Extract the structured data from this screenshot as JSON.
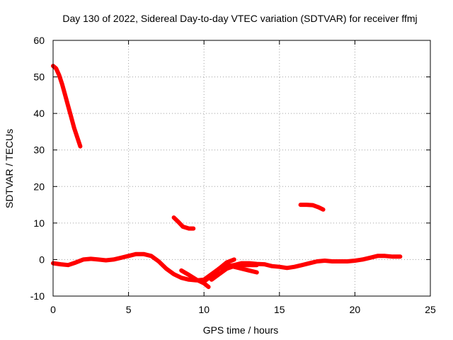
{
  "chart_data": {
    "type": "line",
    "title": "Day 130 of 2022, Sidereal Day-to-day VTEC variation (SDTVAR) for receiver ffmj",
    "xlabel": "GPS time / hours",
    "ylabel": "SDTVAR / TECUs",
    "xlim": [
      0,
      25
    ],
    "ylim": [
      -10,
      60
    ],
    "xticks": [
      0,
      5,
      10,
      15,
      20,
      25
    ],
    "yticks": [
      -10,
      0,
      10,
      20,
      30,
      40,
      50,
      60
    ],
    "xtick_labels": [
      "0",
      "5",
      "10",
      "15",
      "20",
      "25"
    ],
    "ytick_labels": [
      "-10",
      "0",
      "10",
      "20",
      "30",
      "40",
      "50",
      "60"
    ],
    "grid": true,
    "series_color": "#ff0000",
    "series": [
      {
        "name": "steep-descent",
        "x": [
          0.0,
          0.2,
          0.4,
          0.6,
          0.8,
          1.0,
          1.2,
          1.4,
          1.6,
          1.8
        ],
        "y": [
          53.0,
          52.3,
          50.5,
          48.0,
          45.0,
          42.0,
          39.0,
          36.0,
          33.5,
          31.0
        ]
      },
      {
        "name": "main-trace",
        "x": [
          0.0,
          0.5,
          1.0,
          1.5,
          2.0,
          2.5,
          3.0,
          3.5,
          4.0,
          4.5,
          5.0,
          5.5,
          6.0,
          6.5,
          7.0,
          7.5,
          8.0,
          8.5,
          9.0,
          9.5,
          10.0,
          10.5,
          11.0,
          11.5,
          12.0,
          12.5,
          13.0,
          13.5,
          14.0,
          14.5,
          15.0,
          15.5,
          16.0,
          16.5,
          17.0,
          17.5,
          18.0,
          18.5,
          19.0,
          19.5,
          20.0,
          20.5,
          21.0,
          21.5,
          22.0,
          22.5,
          23.0
        ],
        "y": [
          -1.0,
          -1.3,
          -1.5,
          -0.8,
          0.0,
          0.2,
          0.0,
          -0.2,
          0.0,
          0.5,
          1.0,
          1.5,
          1.5,
          1.0,
          -0.5,
          -2.5,
          -4.0,
          -5.0,
          -5.5,
          -5.7,
          -5.5,
          -4.0,
          -2.5,
          -1.8,
          -1.5,
          -1.0,
          -1.0,
          -1.2,
          -1.3,
          -1.8,
          -2.0,
          -2.3,
          -2.0,
          -1.5,
          -1.0,
          -0.5,
          -0.3,
          -0.5,
          -0.5,
          -0.5,
          -0.3,
          0.0,
          0.5,
          1.0,
          1.0,
          0.8,
          0.8
        ]
      },
      {
        "name": "branch-a",
        "x": [
          8.5,
          9.0,
          9.5,
          10.0,
          10.3
        ],
        "y": [
          -3.0,
          -4.2,
          -5.5,
          -6.5,
          -7.5
        ]
      },
      {
        "name": "branch-b",
        "x": [
          10.0,
          10.5,
          11.0,
          11.5,
          12.0
        ],
        "y": [
          -6.0,
          -4.5,
          -2.5,
          -0.8,
          0.0
        ]
      },
      {
        "name": "branch-c",
        "x": [
          10.5,
          11.0,
          11.5,
          12.0,
          12.5,
          13.0,
          13.5
        ],
        "y": [
          -5.5,
          -4.0,
          -2.5,
          -1.8,
          -1.5,
          -1.5,
          -1.5
        ]
      },
      {
        "name": "branch-d",
        "x": [
          11.5,
          12.0,
          12.5,
          13.0,
          13.5
        ],
        "y": [
          -1.5,
          -2.0,
          -2.5,
          -3.0,
          -3.5
        ]
      },
      {
        "name": "segment-9h",
        "x": [
          8.0,
          8.3,
          8.6,
          9.0,
          9.3
        ],
        "y": [
          11.5,
          10.3,
          9.0,
          8.5,
          8.5
        ]
      },
      {
        "name": "segment-17h",
        "x": [
          16.4,
          16.8,
          17.2,
          17.6,
          17.9
        ],
        "y": [
          15.0,
          15.0,
          14.9,
          14.3,
          13.7
        ]
      }
    ]
  }
}
